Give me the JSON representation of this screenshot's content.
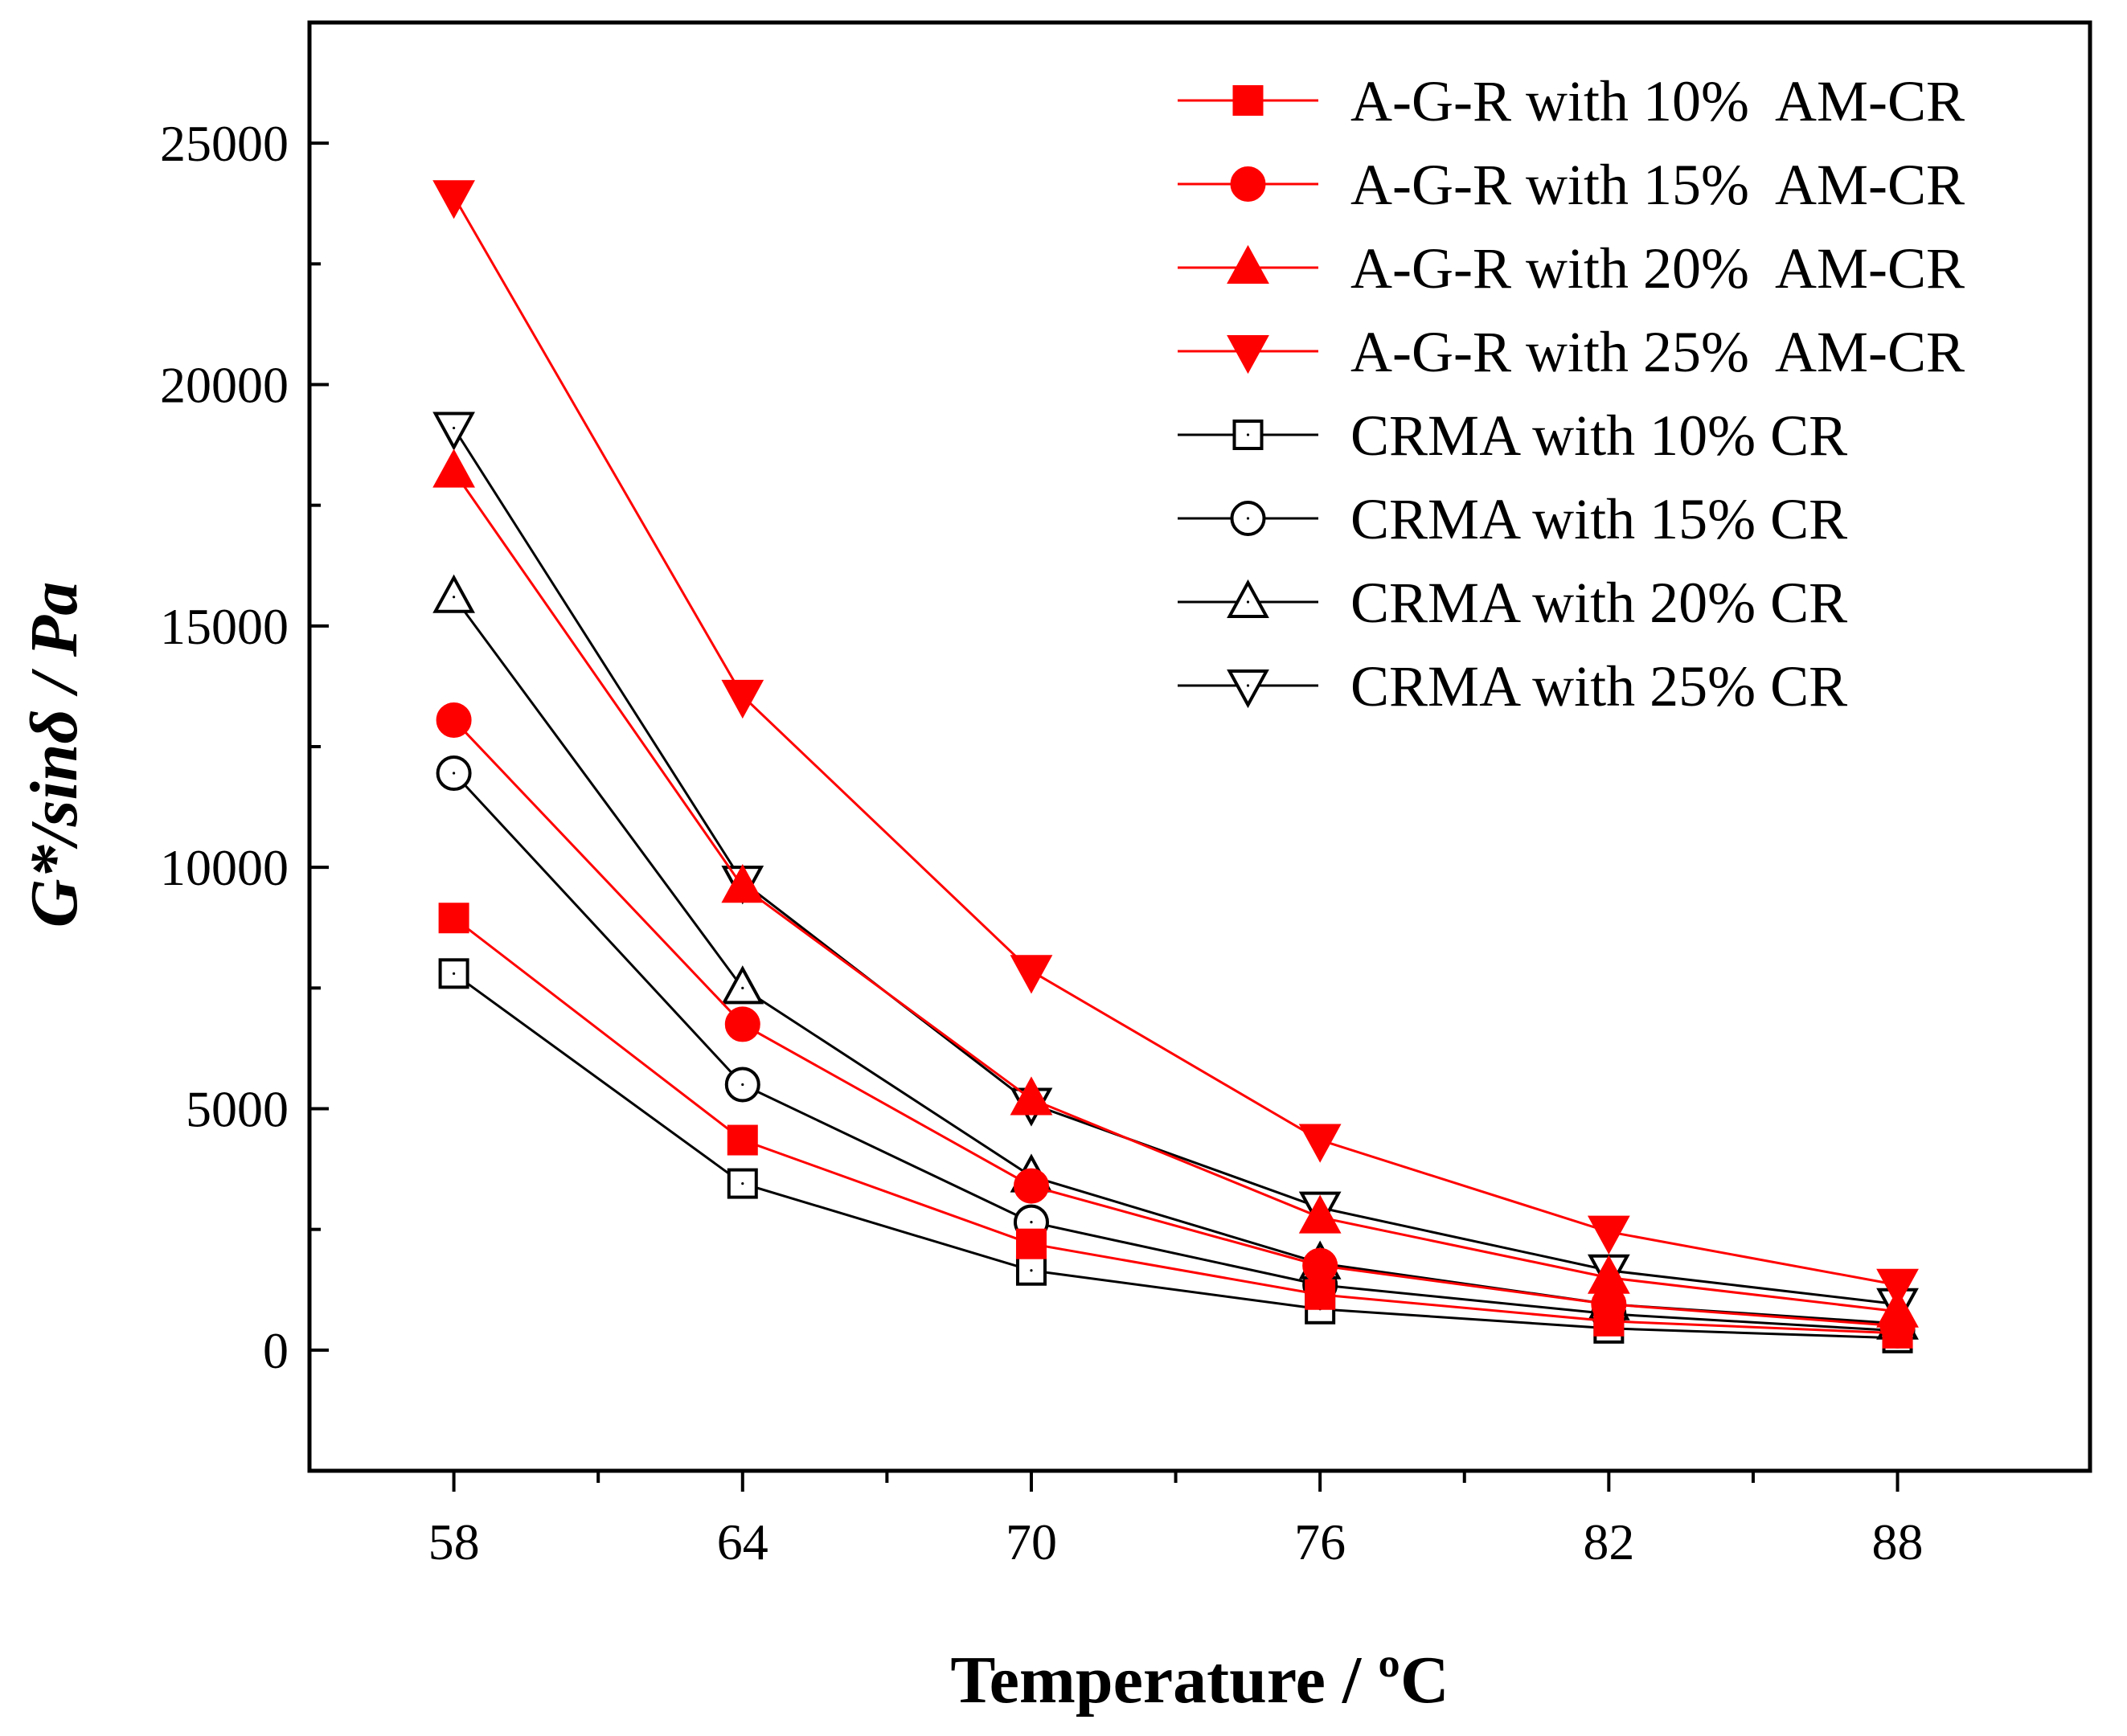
{
  "chart_data": {
    "type": "line",
    "title": "",
    "xlabel": "Temperature / ºC",
    "ylabel": {
      "main": "G*/sin",
      "symbol": "δ",
      "unit": " / Pa"
    },
    "x": [
      58,
      64,
      70,
      76,
      82,
      88
    ],
    "x_tick_labels": [
      "58",
      "64",
      "70",
      "76",
      "82",
      "88"
    ],
    "xlim": [
      55,
      92
    ],
    "ylim": [
      -2500,
      27500
    ],
    "y_ticks": [
      0,
      5000,
      10000,
      15000,
      20000,
      25000
    ],
    "y_tick_labels": [
      "0",
      "5000",
      "10000",
      "15000",
      "20000",
      "25000"
    ],
    "grid": false,
    "legend_position": "top-right",
    "colors": {
      "red": "#ff0000",
      "black": "#000000"
    },
    "series": [
      {
        "name": "A-G-R with 10%  AM-CR",
        "color": "#ff0000",
        "marker": "square",
        "filled": true,
        "values": [
          8950,
          4350,
          2200,
          1150,
          600,
          350
        ]
      },
      {
        "name": "A-G-R with 15%  AM-CR",
        "color": "#ff0000",
        "marker": "circle",
        "filled": true,
        "values": [
          13050,
          6750,
          3400,
          1750,
          950,
          500
        ]
      },
      {
        "name": "A-G-R with 20%  AM-CR",
        "color": "#ff0000",
        "marker": "triangle-up",
        "filled": true,
        "values": [
          18200,
          9600,
          5200,
          2750,
          1500,
          800
        ]
      },
      {
        "name": "A-G-R with 25%  AM-CR",
        "color": "#ff0000",
        "marker": "triangle-down",
        "filled": true,
        "values": [
          23900,
          13550,
          7850,
          4350,
          2450,
          1350
        ]
      },
      {
        "name": "CRMA with 10% CR",
        "color": "#000000",
        "marker": "square",
        "filled": false,
        "values": [
          7800,
          3450,
          1650,
          850,
          450,
          250
        ]
      },
      {
        "name": "CRMA with 15% CR",
        "color": "#000000",
        "marker": "circle",
        "filled": false,
        "values": [
          11950,
          5500,
          2650,
          1350,
          750,
          400
        ]
      },
      {
        "name": "CRMA with 20% CR",
        "color": "#000000",
        "marker": "triangle-up",
        "filled": false,
        "values": [
          15600,
          7500,
          3600,
          1800,
          950,
          550
        ]
      },
      {
        "name": "CRMA with 25% CR",
        "color": "#000000",
        "marker": "triangle-down",
        "filled": false,
        "values": [
          19100,
          9700,
          5100,
          2950,
          1650,
          950
        ]
      }
    ]
  }
}
